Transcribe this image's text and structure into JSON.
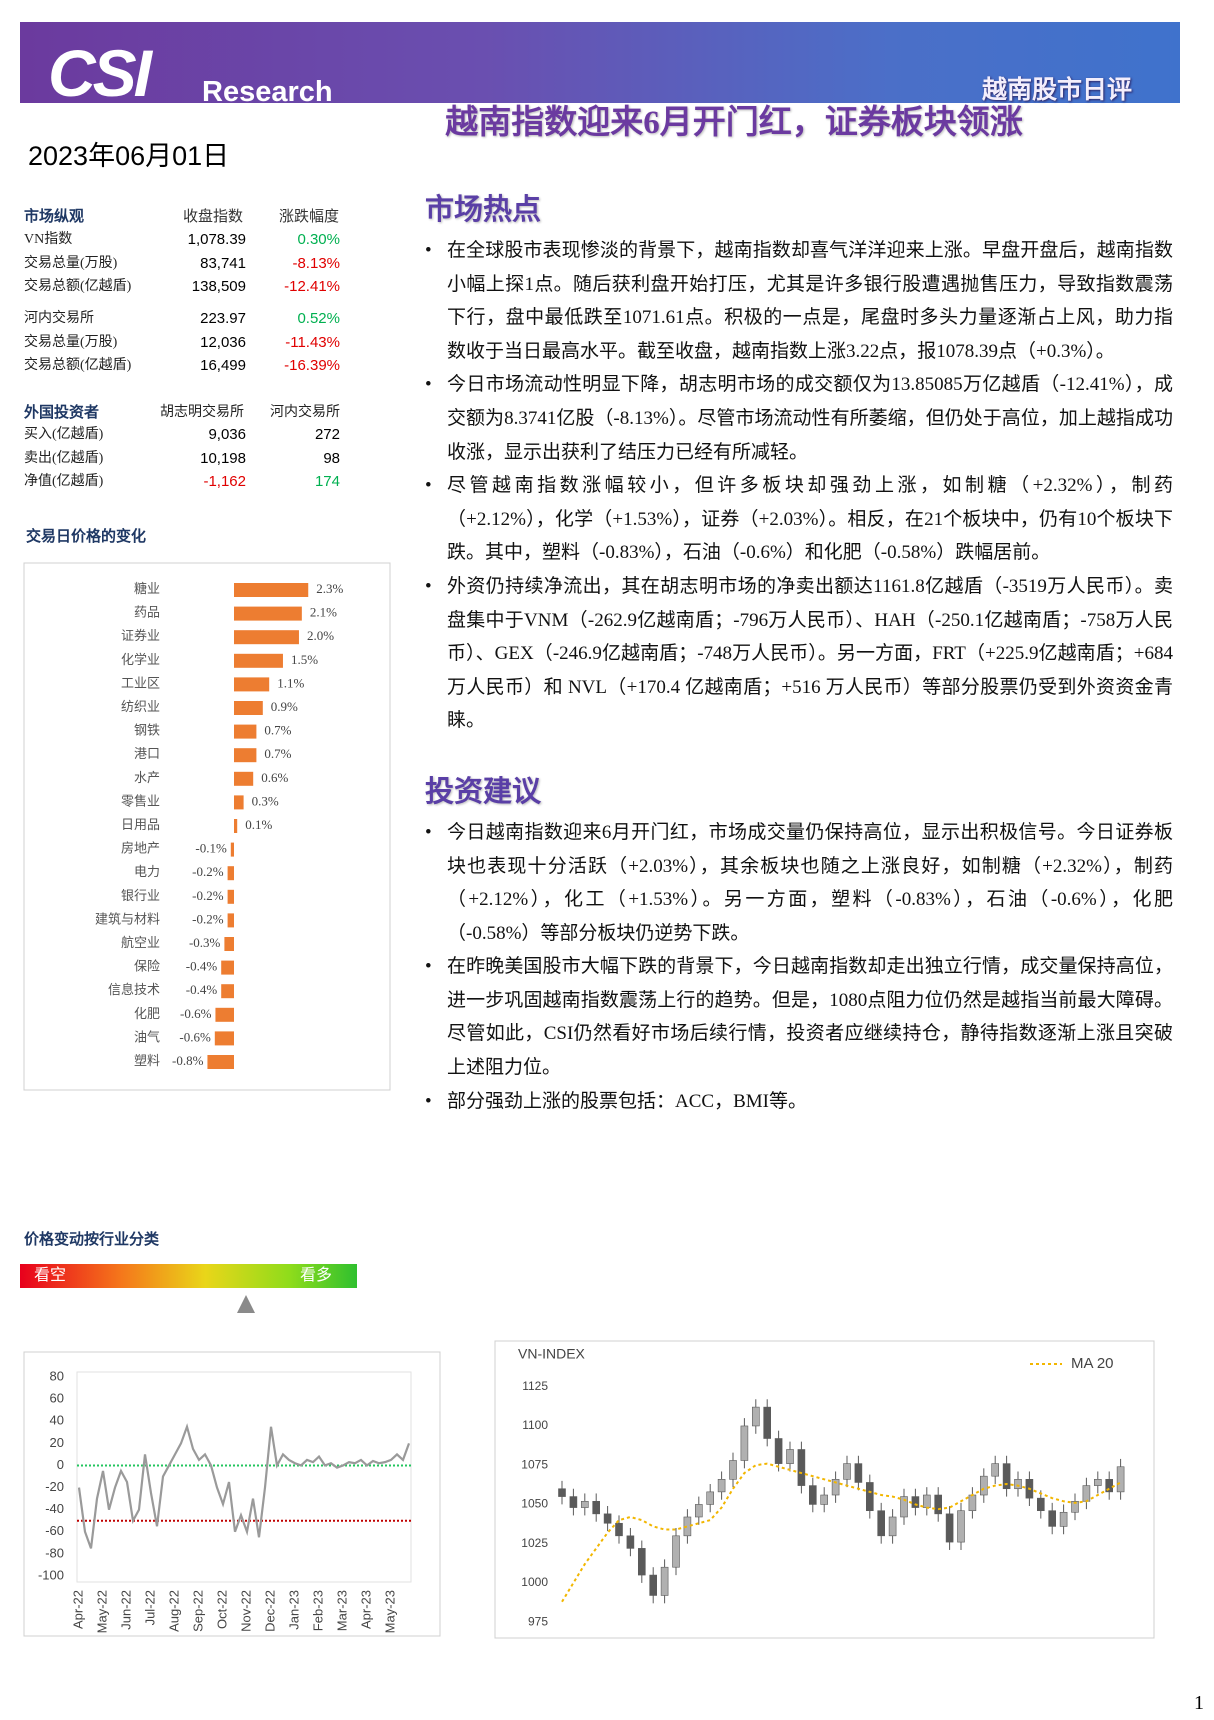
{
  "header": {
    "logo": "CSI",
    "logo_sub": "Research",
    "report_name": "越南股市日评"
  },
  "title": "越南指数迎来6月开门红，证券板块领涨",
  "date": "2023年06月01日",
  "market_overview": {
    "header": [
      "市场纵观",
      "收盘指数",
      "涨跌幅度"
    ],
    "groups": [
      {
        "rows": [
          [
            "VN指数",
            "1,078.39",
            "0.30%"
          ],
          [
            "交易总量(万股)",
            "83,741",
            "-8.13%"
          ],
          [
            "交易总额(亿越盾)",
            "138,509",
            "-12.41%"
          ]
        ]
      },
      {
        "rows": [
          [
            "河内交易所",
            "223.97",
            "0.52%"
          ],
          [
            "交易总量(万股)",
            "12,036",
            "-11.43%"
          ],
          [
            "交易总额(亿越盾)",
            "16,499",
            "-16.39%"
          ]
        ]
      }
    ]
  },
  "foreign_investors": {
    "header": [
      "外国投资者",
      "胡志明交易所",
      "河内交易所"
    ],
    "rows": [
      [
        "买入(亿越盾)",
        "9,036",
        "272"
      ],
      [
        "卖出(亿越盾)",
        "10,198",
        "98"
      ],
      [
        "净值(亿越盾)",
        "-1,162",
        "174"
      ]
    ]
  },
  "market_hotspots": {
    "title": "市场热点",
    "bullets": [
      "在全球股市表现惨淡的背景下，越南指数却喜气洋洋迎来上涨。早盘开盘后，越南指数小幅上探1点。随后获利盘开始打压，尤其是许多银行股遭遇抛售压力，导致指数震荡下行，盘中最低跌至1071.61点。积极的一点是，尾盘时多头力量逐渐占上风，助力指数收于当日最高水平。截至收盘，越南指数上涨3.22点，报1078.39点（+0.3%）。",
      "今日市场流动性明显下降，胡志明市场的成交额仅为13.85085万亿越盾（-12.41%），成交额为8.3741亿股（-8.13%）。尽管市场流动性有所萎缩，但仍处于高位，加上越指成功收涨，显示出获利了结压力已经有所减轻。",
      "尽管越南指数涨幅较小，但许多板块却强劲上涨，如制糖（+2.32%），制药（+2.12%），化学（+1.53%），证券（+2.03%）。相反，在21个板块中，仍有10个板块下跌。其中，塑料（-0.83%），石油（-0.6%）和化肥（-0.58%）跌幅居前。",
      "外资仍持续净流出，其在胡志明市场的净卖出额达1161.8亿越盾（-3519万人民币）。卖盘集中于VNM（-262.9亿越南盾；-796万人民币）、HAH（-250.1亿越南盾；-758万人民币）、GEX（-246.9亿越南盾；-748万人民币）。另一方面，FRT（+225.9亿越南盾；+684万人民币）和 NVL（+170.4 亿越南盾；+516 万人民币）等部分股票仍受到外资资金青睐。"
    ]
  },
  "investment_advice": {
    "title": "投资建议",
    "bullets": [
      "今日越南指数迎来6月开门红，市场成交量仍保持高位，显示出积极信号。今日证券板块也表现十分活跃（+2.03%），其余板块也随之上涨良好，如制糖（+2.32%），制药（+2.12%），化工（+1.53%）。另一方面，塑料（-0.83%），石油（-0.6%），化肥（-0.58%）等部分板块仍逆势下跌。",
      "在昨晚美国股市大幅下跌的背景下，今日越南指数却走出独立行情，成交量保持高位，进一步巩固越南指数震荡上行的趋势。但是，1080点阻力位仍然是越指当前最大障碍。尽管如此，CSI仍然看好市场后续行情，投资者应继续持仓，静待指数逐渐上涨且突破上述阻力位。",
      "部分强劲上涨的股票包括：ACC，BMI等。"
    ]
  },
  "gauge": {
    "title": "价格变动按行业分类",
    "left_label": "看空",
    "right_label": "看多"
  },
  "page_number": "1",
  "chart_data": [
    {
      "type": "bar",
      "orientation": "horizontal",
      "title": "交易日价格的变化",
      "color": "#ed7d31",
      "categories": [
        "糖业",
        "药品",
        "证券业",
        "化学业",
        "工业区",
        "纺织业",
        "钢铁",
        "港口",
        "水产",
        "零售业",
        "日用品",
        "房地产",
        "电力",
        "银行业",
        "建筑与材料",
        "航空业",
        "保险",
        "信息技术",
        "化肥",
        "油气",
        "塑料"
      ],
      "values": [
        2.32,
        2.12,
        2.03,
        1.53,
        1.1,
        0.9,
        0.7,
        0.7,
        0.6,
        0.3,
        0.1,
        -0.1,
        -0.2,
        -0.2,
        -0.2,
        -0.3,
        -0.4,
        -0.4,
        -0.58,
        -0.6,
        -0.83
      ],
      "value_labels": [
        "2.3%",
        "2.1%",
        "2.0%",
        "1.5%",
        "1.1%",
        "0.9%",
        "0.7%",
        "0.7%",
        "0.6%",
        "0.3%",
        "0.1%",
        "-0.1%",
        "-0.2%",
        "-0.2%",
        "-0.2%",
        "-0.3%",
        "-0.4%",
        "-0.4%",
        "-0.6%",
        "-0.6%",
        "-0.8%"
      ]
    },
    {
      "type": "line",
      "color": "#9a9a9a",
      "ylim": [
        -100,
        80
      ],
      "yticks": [
        80,
        60,
        40,
        20,
        0,
        -20,
        -40,
        -60,
        -80,
        -100
      ],
      "reference_lines": [
        {
          "value": 0,
          "color": "#22c55e"
        },
        {
          "value": -50,
          "color": "#c00000"
        }
      ],
      "categories": [
        "Apr-22",
        null,
        null,
        null,
        "May-22",
        null,
        null,
        null,
        "Jun-22",
        null,
        null,
        null,
        "Jul-22",
        null,
        null,
        null,
        "Aug-22",
        null,
        null,
        null,
        "Sep-22",
        null,
        null,
        null,
        "Oct-22",
        null,
        null,
        null,
        "Nov-22",
        null,
        null,
        null,
        "Dec-22",
        null,
        null,
        null,
        "Jan-23",
        null,
        null,
        null,
        "Feb-23",
        null,
        null,
        null,
        "Mar-23",
        null,
        null,
        null,
        "Apr-23",
        null,
        null,
        null,
        "May-23",
        null,
        null,
        null
      ],
      "values": [
        -20,
        -60,
        -75,
        -30,
        -5,
        -40,
        -20,
        -5,
        -15,
        -50,
        -40,
        10,
        -25,
        -55,
        -10,
        0,
        10,
        20,
        35,
        15,
        5,
        10,
        0,
        -20,
        -35,
        -15,
        -60,
        -45,
        -60,
        -30,
        -65,
        -20,
        35,
        0,
        10,
        5,
        2,
        0,
        5,
        3,
        8,
        0,
        2,
        -2,
        0,
        3,
        2,
        5,
        0,
        4,
        2,
        3,
        5,
        10,
        5,
        20
      ]
    },
    {
      "type": "candlestick",
      "title": "VN-INDEX",
      "up_color": "#b0b0b0",
      "down_color": "#5a5a5a",
      "ylim": [
        970,
        1128
      ],
      "yticks": [
        975,
        1000,
        1025,
        1050,
        1075,
        1100,
        1125
      ],
      "open": [
        1060,
        1055,
        1048,
        1052,
        1044,
        1038,
        1030,
        1022,
        1005,
        992,
        1010,
        1030,
        1042,
        1050,
        1058,
        1066,
        1078,
        1100,
        1112,
        1092,
        1076,
        1085,
        1062,
        1050,
        1056,
        1066,
        1076,
        1064,
        1046,
        1030,
        1042,
        1055,
        1048,
        1056,
        1044,
        1026,
        1046,
        1056,
        1068,
        1076,
        1060,
        1066,
        1054,
        1046,
        1036,
        1045,
        1052,
        1062,
        1066,
        1058
      ],
      "high": [
        1065,
        1060,
        1057,
        1057,
        1049,
        1043,
        1035,
        1027,
        1010,
        1015,
        1035,
        1047,
        1055,
        1063,
        1071,
        1083,
        1105,
        1117,
        1117,
        1097,
        1090,
        1090,
        1067,
        1061,
        1071,
        1081,
        1081,
        1069,
        1051,
        1047,
        1060,
        1060,
        1061,
        1061,
        1049,
        1051,
        1061,
        1073,
        1081,
        1081,
        1071,
        1071,
        1059,
        1051,
        1050,
        1057,
        1067,
        1071,
        1071,
        1079
      ],
      "low": [
        1050,
        1043,
        1043,
        1039,
        1033,
        1025,
        1017,
        1000,
        987,
        987,
        1005,
        1025,
        1037,
        1045,
        1053,
        1061,
        1073,
        1095,
        1087,
        1071,
        1071,
        1057,
        1045,
        1045,
        1051,
        1061,
        1059,
        1041,
        1025,
        1025,
        1037,
        1043,
        1043,
        1039,
        1021,
        1021,
        1041,
        1051,
        1063,
        1055,
        1055,
        1049,
        1041,
        1031,
        1031,
        1040,
        1047,
        1057,
        1053,
        1053
      ],
      "close": [
        1055,
        1048,
        1052,
        1044,
        1038,
        1030,
        1022,
        1005,
        992,
        1010,
        1030,
        1042,
        1050,
        1058,
        1066,
        1078,
        1100,
        1112,
        1092,
        1076,
        1085,
        1062,
        1050,
        1056,
        1066,
        1076,
        1064,
        1046,
        1030,
        1042,
        1055,
        1048,
        1056,
        1044,
        1026,
        1046,
        1056,
        1068,
        1076,
        1060,
        1066,
        1054,
        1046,
        1036,
        1045,
        1052,
        1062,
        1066,
        1058,
        1074
      ],
      "series": [
        {
          "name": "MA 20",
          "color": "#f2b600",
          "values": [
            988,
            1000,
            1012,
            1022,
            1032,
            1040,
            1042,
            1040,
            1036,
            1034,
            1034,
            1036,
            1038,
            1040,
            1048,
            1060,
            1070,
            1075,
            1076,
            1074,
            1072,
            1070,
            1068,
            1066,
            1064,
            1062,
            1060,
            1058,
            1056,
            1055,
            1053,
            1050,
            1048,
            1047,
            1048,
            1052,
            1056,
            1060,
            1062,
            1063,
            1062,
            1060,
            1057,
            1054,
            1052,
            1051,
            1052,
            1056,
            1060,
            1064
          ]
        }
      ]
    }
  ]
}
